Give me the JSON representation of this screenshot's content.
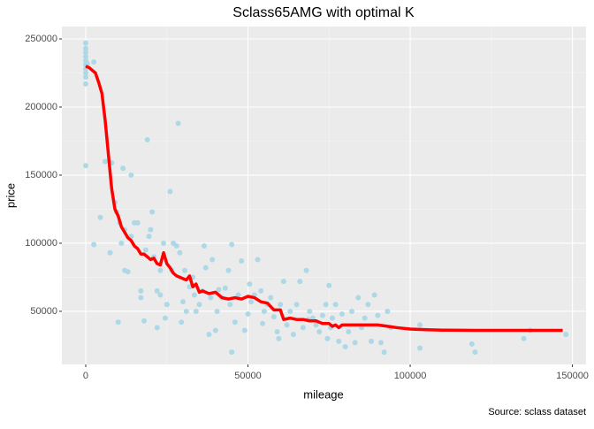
{
  "chart_data": {
    "type": "scatter",
    "title": "Sclass65AMG with optimal K",
    "x_label": "mileage",
    "y_label": "price",
    "caption": "Source: sclass dataset",
    "xlim": [
      -7350,
      154200
    ],
    "ylim": [
      11000,
      259100
    ],
    "xticks": [
      0,
      50000,
      100000,
      150000
    ],
    "yticks": [
      50000,
      100000,
      150000,
      200000,
      250000
    ],
    "grid": true,
    "series": [
      {
        "type": "scatter",
        "color": "#add8e6",
        "x": [
          0,
          0,
          0,
          0,
          0,
          0,
          0,
          0,
          0,
          0,
          0,
          500,
          2500,
          2500,
          4500,
          6000,
          7500,
          8000,
          9000,
          9500,
          10000,
          10500,
          11000,
          11500,
          12000,
          12000,
          13000,
          14000,
          14000,
          15000,
          16000,
          17000,
          17000,
          18000,
          18500,
          19000,
          19500,
          20000,
          20500,
          21000,
          22000,
          22000,
          23000,
          23000,
          24000,
          24500,
          25000,
          26000,
          26500,
          27000,
          28000,
          28500,
          29000,
          29500,
          30000,
          30500,
          31000,
          32000,
          33000,
          33500,
          34000,
          35000,
          36000,
          36500,
          37000,
          38000,
          38500,
          39000,
          40000,
          40500,
          41000,
          42000,
          43000,
          44000,
          44500,
          45000,
          45000,
          46000,
          47000,
          48000,
          49000,
          50000,
          50500,
          51000,
          52000,
          53000,
          54000,
          54500,
          55000,
          56000,
          57000,
          58000,
          59000,
          59500,
          60000,
          61000,
          62000,
          63000,
          64000,
          65000,
          66000,
          67000,
          68000,
          68500,
          69000,
          70000,
          71000,
          72000,
          73000,
          74000,
          74500,
          75000,
          75500,
          76000,
          77000,
          78000,
          79000,
          80000,
          81000,
          82000,
          83000,
          84000,
          85000,
          86000,
          87000,
          88000,
          89000,
          90000,
          91000,
          92000,
          93000,
          94000,
          103000,
          103000,
          119000,
          120000,
          135000,
          137000,
          148000
        ],
        "values": [
          247000,
          243000,
          240000,
          237000,
          234000,
          231000,
          228000,
          225000,
          222000,
          217000,
          157000,
          232000,
          233000,
          99000,
          119000,
          160000,
          93000,
          159000,
          130000,
          123000,
          42000,
          115000,
          100000,
          155000,
          80000,
          110000,
          79000,
          150000,
          105000,
          115000,
          115000,
          65000,
          60000,
          43000,
          95000,
          176000,
          105000,
          110000,
          123000,
          90000,
          38000,
          65000,
          62000,
          80000,
          100000,
          45000,
          55000,
          138000,
          80000,
          100000,
          98000,
          188000,
          93000,
          42000,
          57000,
          80000,
          50000,
          68000,
          75000,
          62000,
          50000,
          55000,
          65000,
          98000,
          82000,
          33000,
          60000,
          88000,
          36000,
          50000,
          66000,
          60000,
          67000,
          80000,
          55000,
          99000,
          20000,
          42000,
          62000,
          87000,
          36000,
          48000,
          70000,
          57000,
          62000,
          88000,
          65000,
          41000,
          50000,
          55000,
          60000,
          46000,
          35000,
          30000,
          55000,
          72000,
          40000,
          50000,
          33000,
          55000,
          72000,
          38000,
          80000,
          44000,
          50000,
          45000,
          40000,
          35000,
          47000,
          55000,
          30000,
          69000,
          38000,
          45000,
          55000,
          28000,
          48000,
          24000,
          35000,
          50000,
          27000,
          60000,
          38000,
          45000,
          55000,
          28000,
          62000,
          47000,
          27000,
          20000,
          50000,
          38000,
          40000,
          23000,
          26000,
          20000,
          30000,
          36000,
          33000
        ]
      },
      {
        "type": "line",
        "color": "#ff0000",
        "x": [
          0,
          1000,
          2000,
          3000,
          4000,
          5000,
          6000,
          7000,
          8000,
          9000,
          10000,
          11000,
          12000,
          13000,
          14000,
          15000,
          16000,
          17000,
          18000,
          19000,
          20000,
          21000,
          22000,
          23000,
          24000,
          25000,
          26000,
          27000,
          28000,
          30000,
          31000,
          32000,
          33000,
          34000,
          35000,
          36000,
          38000,
          40000,
          42000,
          44000,
          46000,
          48000,
          50000,
          52000,
          54000,
          56000,
          58000,
          60000,
          61000,
          63000,
          65000,
          67000,
          69000,
          71000,
          73000,
          75000,
          76000,
          77000,
          78000,
          79000,
          82000,
          86000,
          90000,
          93000,
          96000,
          100000,
          105000,
          110000,
          120000,
          130000,
          140000,
          147000
        ],
        "values": [
          230000,
          229000,
          227000,
          225000,
          218000,
          210000,
          190000,
          165000,
          140000,
          125000,
          120000,
          112000,
          108000,
          104000,
          102000,
          98000,
          96000,
          92000,
          92000,
          90000,
          88000,
          89000,
          85000,
          84000,
          93000,
          85000,
          82000,
          78000,
          76000,
          74000,
          73000,
          76000,
          68000,
          70000,
          64000,
          65000,
          63000,
          64000,
          60000,
          59000,
          60000,
          59000,
          61000,
          60000,
          57000,
          56000,
          51000,
          51000,
          44000,
          45000,
          44000,
          44000,
          43000,
          43000,
          41000,
          41000,
          39000,
          40000,
          38000,
          40000,
          40000,
          40000,
          40000,
          39000,
          38000,
          37000,
          36500,
          36200,
          36000,
          36000,
          36000,
          36000
        ]
      }
    ]
  }
}
